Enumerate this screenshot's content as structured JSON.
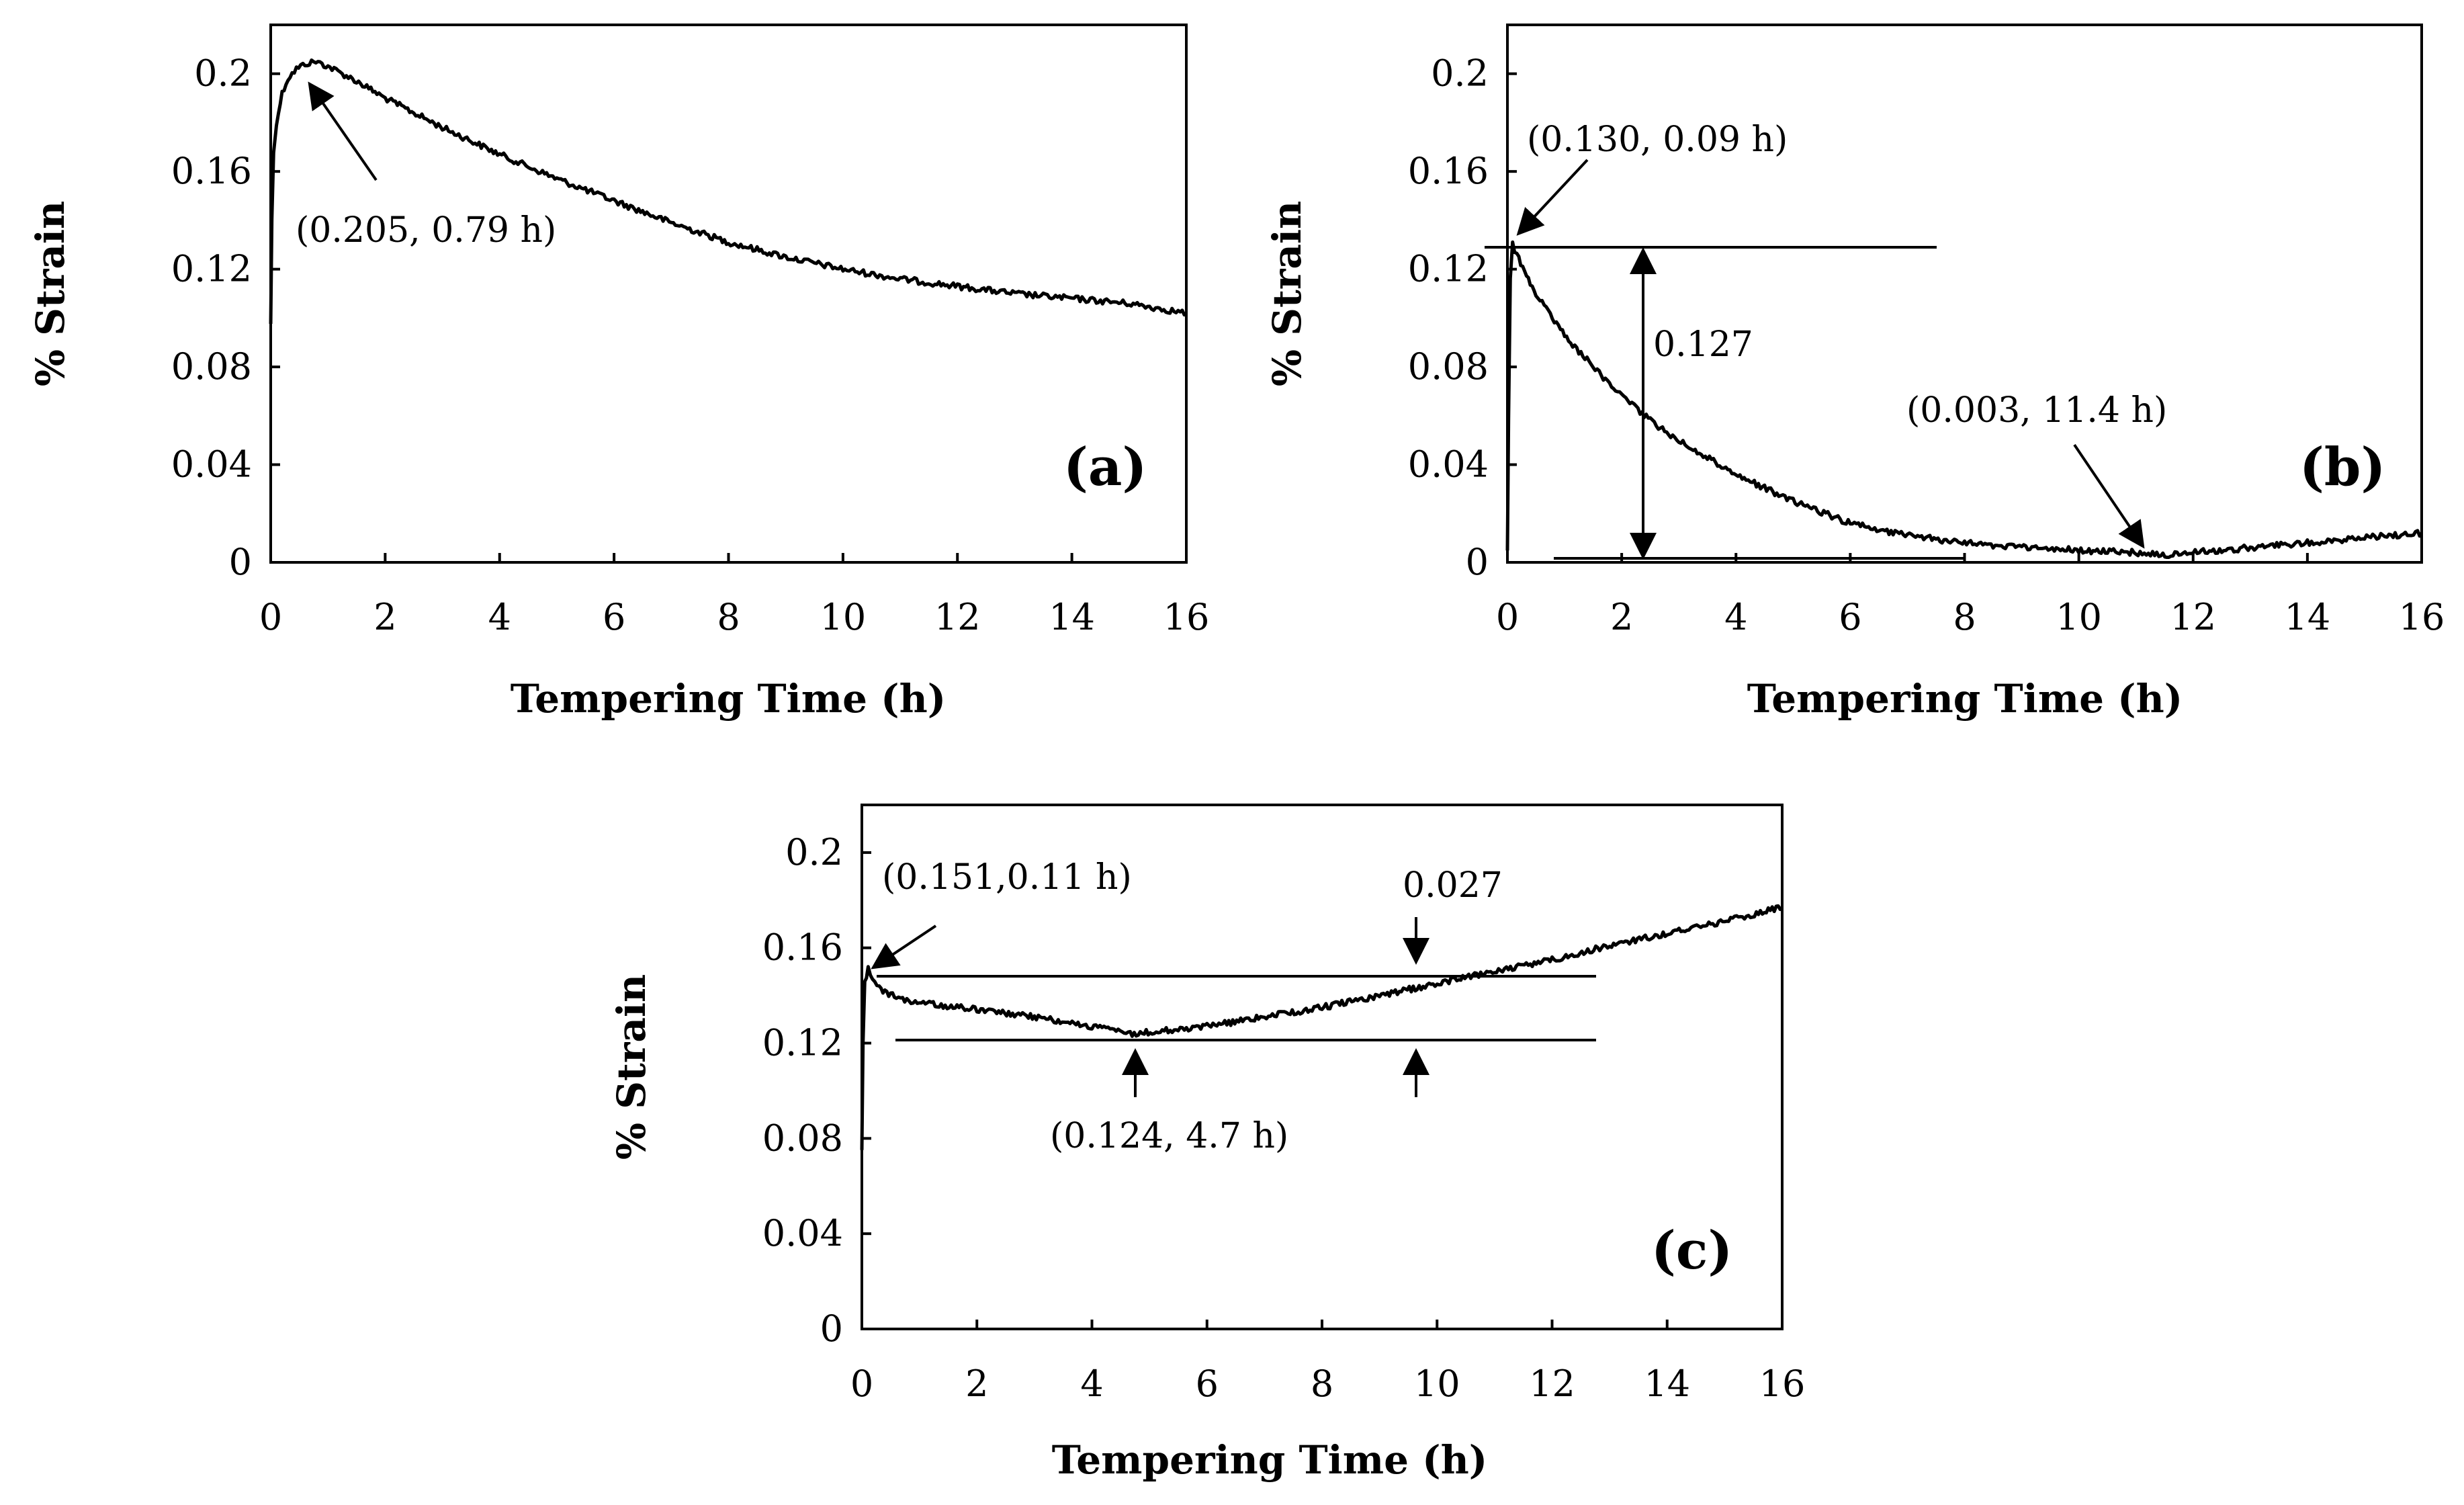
{
  "chart_data": [
    {
      "id": "a",
      "type": "line",
      "panel_label": "(a)",
      "xlabel": "Tempering Time (h)",
      "ylabel": "% Strain",
      "xlim": [
        0,
        16
      ],
      "ylim": [
        0,
        0.22
      ],
      "x_ticks": [
        0,
        2,
        4,
        6,
        8,
        10,
        12,
        14,
        16
      ],
      "x_tick_labels": [
        "0",
        "2",
        "4",
        "6",
        "8",
        "10",
        "12",
        "14",
        "16"
      ],
      "y_ticks": [
        0,
        0.04,
        0.08,
        0.12,
        0.16,
        0.2
      ],
      "y_tick_labels": [
        "0",
        "0.04",
        "0.08",
        "0.12",
        "0.16",
        "0.2"
      ],
      "series": [
        {
          "name": "strain",
          "x": [
            0,
            0.02,
            0.05,
            0.1,
            0.2,
            0.3,
            0.45,
            0.6,
            0.79,
            1.0,
            1.5,
            2,
            3,
            4,
            5,
            6,
            7,
            8,
            9,
            10,
            11,
            12,
            13,
            14,
            15,
            16
          ],
          "y": [
            0.098,
            0.14,
            0.168,
            0.18,
            0.192,
            0.198,
            0.202,
            0.204,
            0.205,
            0.203,
            0.197,
            0.19,
            0.178,
            0.167,
            0.157,
            0.148,
            0.139,
            0.131,
            0.125,
            0.12,
            0.116,
            0.113,
            0.11,
            0.108,
            0.106,
            0.102
          ]
        }
      ],
      "annotations": [
        {
          "text": "(0.205, 0.79 h)",
          "x": 0.79,
          "y": 0.205
        }
      ]
    },
    {
      "id": "b",
      "type": "line",
      "panel_label": "(b)",
      "xlabel": "Tempering Time (h)",
      "ylabel": "% Strain",
      "xlim": [
        0,
        16
      ],
      "ylim": [
        0,
        0.22
      ],
      "x_ticks": [
        0,
        2,
        4,
        6,
        8,
        10,
        12,
        14,
        16
      ],
      "x_tick_labels": [
        "0",
        "2",
        "4",
        "6",
        "8",
        "10",
        "12",
        "14",
        "16"
      ],
      "y_ticks": [
        0,
        0.04,
        0.08,
        0.12,
        0.16,
        0.2
      ],
      "y_tick_labels": [
        "0",
        "0.04",
        "0.08",
        "0.12",
        "0.16",
        "0.2"
      ],
      "series": [
        {
          "name": "strain",
          "x": [
            0,
            0.02,
            0.05,
            0.09,
            0.2,
            0.5,
            1,
            1.5,
            2,
            2.5,
            3,
            4,
            5,
            6,
            7,
            8,
            9,
            10,
            11,
            11.4,
            12,
            13,
            14,
            15,
            16
          ],
          "y": [
            0.005,
            0.06,
            0.115,
            0.13,
            0.124,
            0.11,
            0.093,
            0.08,
            0.068,
            0.058,
            0.05,
            0.036,
            0.025,
            0.016,
            0.011,
            0.008,
            0.006,
            0.005,
            0.004,
            0.003,
            0.004,
            0.006,
            0.008,
            0.01,
            0.012
          ]
        }
      ],
      "annotations": [
        {
          "text": "(0.130, 0.09 h)",
          "x": 0.09,
          "y": 0.13
        },
        {
          "text": "0.127"
        },
        {
          "text": "(0.003, 11.4 h)",
          "x": 11.4,
          "y": 0.003
        }
      ],
      "reference_lines": [
        0.13,
        0.003
      ]
    },
    {
      "id": "c",
      "type": "line",
      "panel_label": "(c)",
      "xlabel": "Tempering Time (h)",
      "ylabel": "% Strain",
      "xlim": [
        0,
        16
      ],
      "ylim": [
        0,
        0.22
      ],
      "x_ticks": [
        0,
        2,
        4,
        6,
        8,
        10,
        12,
        14,
        16
      ],
      "x_tick_labels": [
        "0",
        "2",
        "4",
        "6",
        "8",
        "10",
        "12",
        "14",
        "16"
      ],
      "y_ticks": [
        0,
        0.04,
        0.08,
        0.12,
        0.16,
        0.2
      ],
      "y_tick_labels": [
        "0",
        "0.04",
        "0.08",
        "0.12",
        "0.16",
        "0.2"
      ],
      "series": [
        {
          "name": "strain",
          "x": [
            0,
            0.02,
            0.05,
            0.11,
            0.3,
            0.6,
            1,
            2,
            3,
            4,
            4.7,
            5.5,
            6,
            7,
            8,
            9,
            10,
            11,
            12,
            13,
            14,
            15,
            16
          ],
          "y": [
            0.075,
            0.12,
            0.145,
            0.151,
            0.143,
            0.139,
            0.137,
            0.134,
            0.131,
            0.127,
            0.124,
            0.126,
            0.127,
            0.131,
            0.135,
            0.14,
            0.145,
            0.15,
            0.155,
            0.161,
            0.166,
            0.171,
            0.177
          ]
        }
      ],
      "annotations": [
        {
          "text": "(0.151,0.11 h)",
          "x": 0.11,
          "y": 0.151
        },
        {
          "text": "0.027",
          "x": 9.7
        },
        {
          "text": "(0.124, 4.7 h)",
          "x": 4.7,
          "y": 0.124
        }
      ],
      "reference_lines": [
        0.148,
        0.121
      ]
    }
  ]
}
